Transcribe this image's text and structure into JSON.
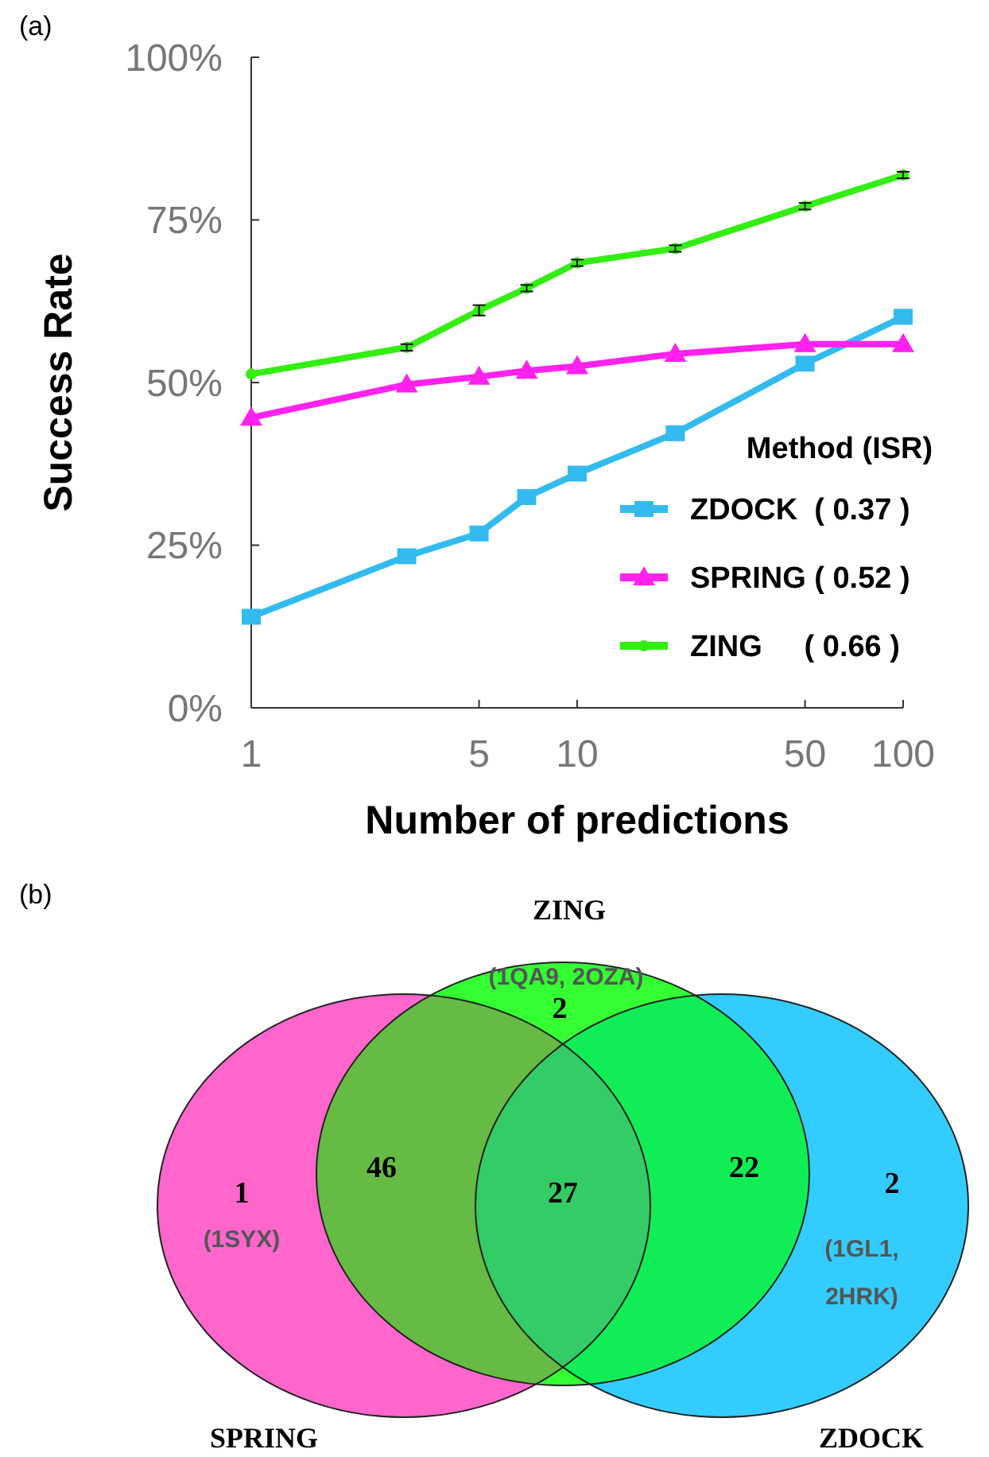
{
  "chart_data": [
    {
      "type": "line",
      "title": "(a)",
      "xlabel": "Number of predictions",
      "ylabel": "Success Rate",
      "legend_title": "Method (ISR)",
      "log": "x",
      "x": [
        1,
        3,
        5,
        7,
        10,
        20,
        50,
        100
      ],
      "xlim": [
        1,
        100
      ],
      "xticks": [
        1,
        5,
        10,
        50,
        100
      ],
      "ylim": [
        0,
        100
      ],
      "yticks": [
        {
          "value": 0,
          "label": "0%"
        },
        {
          "value": 25,
          "label": "25%"
        },
        {
          "value": 50,
          "label": "50%"
        },
        {
          "value": 75,
          "label": "75%"
        },
        {
          "value": 100,
          "label": "100%"
        }
      ],
      "legend": "bottom right",
      "grid": false,
      "series": [
        {
          "name": "ZDOCK  ( 0.37 )",
          "color": "#33bbf0",
          "marker": "square",
          "values": [
            14.0,
            23.3,
            26.8,
            32.4,
            36.0,
            42.2,
            52.9,
            60.1
          ]
        },
        {
          "name": "SPRING ( 0.52 )",
          "color": "#ff22ee",
          "marker": "triangle",
          "values": [
            44.6,
            49.7,
            50.9,
            51.8,
            52.5,
            54.4,
            55.9,
            55.9
          ]
        },
        {
          "name": "ZING     ( 0.66 )",
          "color": "#33ee11",
          "marker": "circle",
          "values": [
            51.3,
            55.4,
            61.1,
            64.5,
            68.4,
            70.6,
            77.1,
            81.9
          ],
          "errors": [
            null,
            0.5,
            0.8,
            0.5,
            0.5,
            0.5,
            0.5,
            0.5
          ]
        }
      ]
    },
    {
      "type": "other",
      "title": "(b)",
      "colors": [
        "#ff66cc",
        "#33ff33",
        "#33ccff",
        "#66bb44",
        "#11ee55",
        "#33cc66"
      ],
      "annotations": [
        "SPRING",
        "ZING",
        "ZDOCK",
        "(1SYX)",
        "(1QA9, 2OZA)",
        "(1GL1, 2HRK)",
        "1",
        "2",
        "2",
        "46",
        "22",
        "27"
      ]
    }
  ]
}
